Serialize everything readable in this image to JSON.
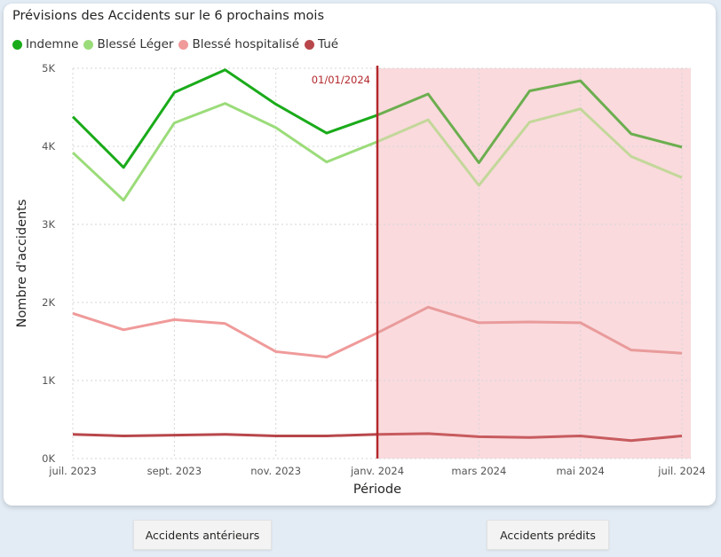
{
  "chart_data": {
    "type": "line",
    "title": "Prévisions des Accidents sur le 6 prochains mois",
    "xlabel": "Période",
    "ylabel": "Nombre d'accidents",
    "ylim": [
      0,
      5000
    ],
    "y_ticks": [
      {
        "value": 0,
        "label": "0K"
      },
      {
        "value": 1000,
        "label": "1K"
      },
      {
        "value": 2000,
        "label": "2K"
      },
      {
        "value": 3000,
        "label": "3K"
      },
      {
        "value": 4000,
        "label": "4K"
      },
      {
        "value": 5000,
        "label": "5K"
      }
    ],
    "x": [
      "2023-07",
      "2023-08",
      "2023-09",
      "2023-10",
      "2023-11",
      "2023-12",
      "2024-01",
      "2024-02",
      "2024-03",
      "2024-04",
      "2024-05",
      "2024-06",
      "2024-07"
    ],
    "x_ticks": [
      {
        "index": 0,
        "label": "juil. 2023"
      },
      {
        "index": 2,
        "label": "sept. 2023"
      },
      {
        "index": 4,
        "label": "nov. 2023"
      },
      {
        "index": 6,
        "label": "janv. 2024"
      },
      {
        "index": 8,
        "label": "mars 2024"
      },
      {
        "index": 10,
        "label": "mai 2024"
      },
      {
        "index": 12,
        "label": "juil. 2024"
      }
    ],
    "forecast_start": "01/01/2024",
    "forecast_start_index": 6,
    "grid": true,
    "legend_position": "top-left",
    "series": [
      {
        "name": "Indemne",
        "color": "#1aab1a",
        "forecast_color": "#6cae4f",
        "values": [
          4380,
          3730,
          4690,
          4980,
          4540,
          4170,
          4400,
          4670,
          3790,
          4710,
          4840,
          4160,
          3990
        ]
      },
      {
        "name": "Blessé Léger",
        "color": "#9bdc7a",
        "forecast_color": "#c3d79a",
        "values": [
          3920,
          3310,
          4300,
          4550,
          4240,
          3800,
          4060,
          4340,
          3500,
          4310,
          4480,
          3870,
          3600
        ]
      },
      {
        "name": "Blessé hospitalisé",
        "color": "#f09a9a",
        "forecast_color": "#e99b9b",
        "values": [
          1860,
          1650,
          1780,
          1730,
          1370,
          1300,
          1610,
          1940,
          1740,
          1750,
          1740,
          1390,
          1350
        ]
      },
      {
        "name": "Tué",
        "color": "#b8474b",
        "forecast_color": "#c75b5e",
        "values": [
          310,
          290,
          300,
          310,
          290,
          290,
          310,
          320,
          280,
          270,
          290,
          230,
          290
        ]
      }
    ]
  },
  "buttons": {
    "past_label": "Accidents antérieurs",
    "predicted_label": "Accidents prédits"
  },
  "colors": {
    "forecast_band": "#fadadd",
    "forecast_line": "#b3282d",
    "background": "#e3ecf5"
  }
}
